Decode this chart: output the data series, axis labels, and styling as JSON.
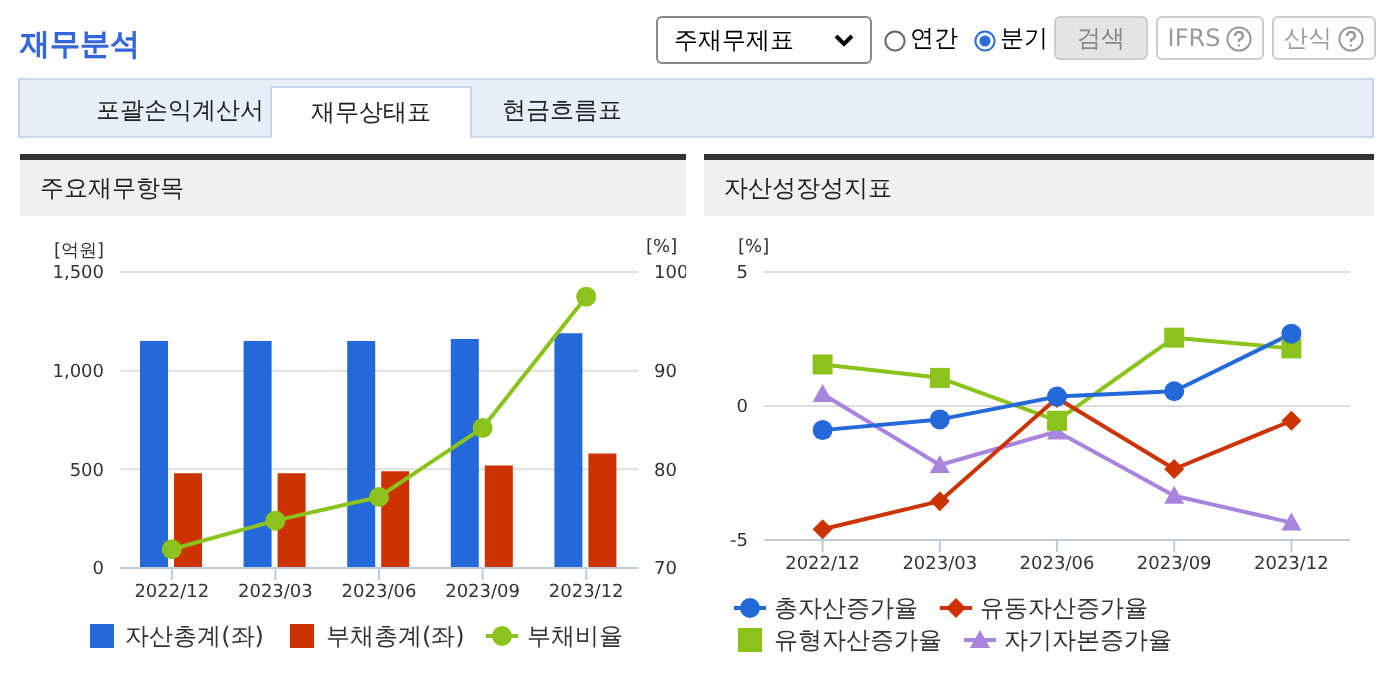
{
  "chart_data": [
    {
      "type": "other",
      "title": "재무분석",
      "annotations": [
        "주재무제표",
        "연간",
        "분기",
        "검색",
        "IFRS",
        "산식",
        "포괄손익계산서",
        "재무상태표",
        "현금흐름표"
      ]
    },
    {
      "type": "bar",
      "title": "주요재무항목",
      "categories": [
        "2022/12",
        "2023/03",
        "2023/06",
        "2023/09",
        "2023/12"
      ],
      "ylabel": "[억원]",
      "y2label": "[%]",
      "ylim": [
        0,
        1500
      ],
      "yticks": [
        0,
        {
          "value": 500,
          "label": "500"
        },
        {
          "value": 1000,
          "label": "1,000"
        },
        {
          "value": 1500,
          "label": "1,500"
        }
      ],
      "y2lim": [
        70,
        100
      ],
      "y2ticks": [
        70,
        80,
        90,
        100
      ],
      "grid": "y",
      "legend": "bottom",
      "series": [
        {
          "name": "자산총계(좌)",
          "color": "#2369d9",
          "values": [
            1150,
            1150,
            1150,
            1160,
            1190
          ]
        },
        {
          "name": "부채총계(좌)",
          "color": "#cc3300",
          "values": [
            480,
            480,
            490,
            520,
            580
          ]
        },
        {
          "name": "부채비율",
          "type": "line",
          "axis": "y2",
          "marker": "circle",
          "color": "#8cc21c",
          "values": [
            71.9,
            74.8,
            77.2,
            84.2,
            97.5
          ]
        }
      ]
    },
    {
      "type": "line",
      "title": "자산성장성지표",
      "categories": [
        "2022/12",
        "2023/03",
        "2023/06",
        "2023/09",
        "2023/12"
      ],
      "ylabel": "[%]",
      "ylim": [
        -5,
        5
      ],
      "yticks": [
        -5,
        0,
        5
      ],
      "grid": "y",
      "legend": "bottom",
      "series": [
        {
          "name": "총자산증가율",
          "marker": "circle",
          "color": "#2369d9",
          "values": [
            -0.9,
            -0.5,
            0.35,
            0.55,
            2.7
          ]
        },
        {
          "name": "유동자산증가율",
          "marker": "diamond",
          "color": "#cc3300",
          "values": [
            -4.6,
            -3.55,
            0.3,
            -2.35,
            -0.55
          ]
        },
        {
          "name": "유형자산증가율",
          "marker": "square",
          "color": "#8cc21c",
          "values": [
            1.55,
            1.05,
            -0.55,
            2.55,
            2.15
          ]
        },
        {
          "name": "자기자본증가율",
          "marker": "triangle",
          "color": "#a884dd",
          "values": [
            0.45,
            -2.2,
            -0.95,
            -3.35,
            -4.35
          ]
        }
      ]
    }
  ]
}
